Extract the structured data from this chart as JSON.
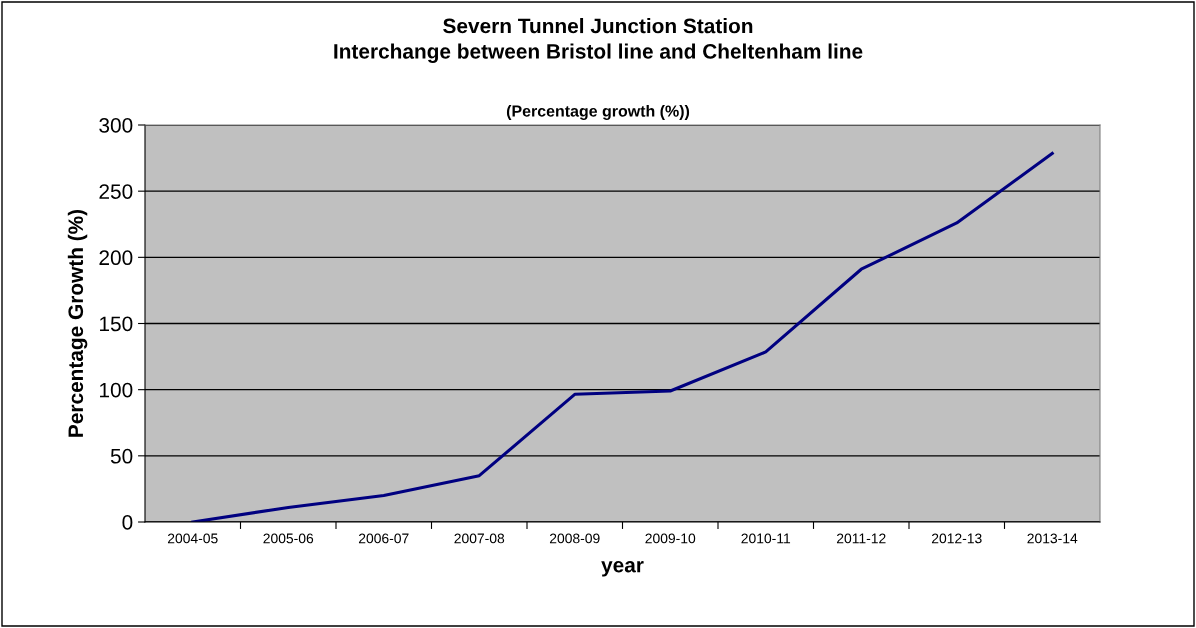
{
  "chart_data": {
    "type": "line",
    "title": "Severn Tunnel Junction Station\nInterchange between Bristol line and Cheltenham line",
    "subtitle": "(Percentage growth (%))",
    "xlabel": "year",
    "ylabel": "Percentage Growth (%)",
    "categories": [
      "2004-05",
      "2005-06",
      "2006-07",
      "2007-08",
      "2008-09",
      "2009-10",
      "2010-11",
      "2011-12",
      "2012-13",
      "2013-14"
    ],
    "series": [
      {
        "color": "#000080",
        "values": [
          0,
          11,
          20,
          35,
          96.5,
          99,
          128.5,
          191,
          226,
          278.5
        ]
      }
    ],
    "ylim": [
      0,
      300
    ],
    "yticks": [
      0,
      50,
      100,
      150,
      200,
      250,
      300
    ],
    "grid": "y",
    "legend": false,
    "marker": "none",
    "line_style": "solid"
  }
}
